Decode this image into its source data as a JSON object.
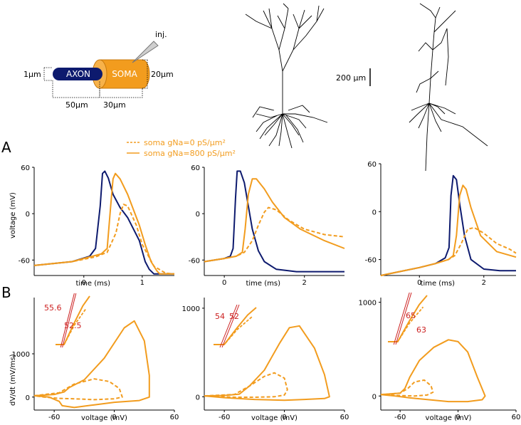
{
  "colors": {
    "navy": "#0d1a6e",
    "orange": "#f29c1e",
    "red": "#cc1f1f",
    "axis": "#000000",
    "neuron": "#000000",
    "soma_fill": "#f29c1e",
    "axon_fill": "#0d1a6e"
  },
  "schematic": {
    "axon_label": "AXON",
    "soma_label": "SOMA",
    "inj_label": "inj.",
    "diam_axon": "1µm",
    "diam_soma": "20µm",
    "len_axon": "50µm",
    "len_soma": "30µm",
    "scalebar": "200 µm"
  },
  "panels": {
    "A": "A",
    "B": "B"
  },
  "legend": {
    "dashed": "soma gNa=0 pS/µm²",
    "solid": "soma gNa=800 pS/µm²"
  },
  "labels": {
    "voltage_mV": "voltage (mV)",
    "time_ms": "time (ms)",
    "dvdt": "dV/dt (mV/ms)",
    "voltage_x": "voltage (mV)"
  },
  "chart_data": [
    {
      "type": "line",
      "panel": "A1",
      "title": "",
      "xlabel": "time (ms)",
      "ylabel": "voltage (mV)",
      "xlim": [
        -0.85,
        1.55
      ],
      "ylim": [
        -80,
        60
      ],
      "xticks": [
        0,
        1
      ],
      "yticks": [
        -60,
        0,
        60
      ],
      "series": [
        {
          "name": "axon",
          "style": "solid-navy",
          "x": [
            -0.85,
            -0.2,
            0.1,
            0.2,
            0.28,
            0.32,
            0.36,
            0.42,
            0.5,
            0.62,
            0.75,
            0.95,
            1.05,
            1.12,
            1.2,
            1.55
          ],
          "y": [
            -67,
            -62,
            -55,
            -45,
            10,
            52,
            55,
            46,
            25,
            8,
            -5,
            -35,
            -62,
            -72,
            -78,
            -78
          ]
        },
        {
          "name": "soma gNa=800",
          "style": "solid-orange",
          "x": [
            -0.85,
            -0.2,
            0.1,
            0.3,
            0.4,
            0.46,
            0.5,
            0.54,
            0.62,
            0.75,
            0.95,
            1.05,
            1.15,
            1.25,
            1.3,
            1.55
          ],
          "y": [
            -67,
            -62,
            -56,
            -52,
            -45,
            10,
            45,
            52,
            45,
            25,
            -15,
            -40,
            -62,
            -74,
            -78,
            -78
          ]
        },
        {
          "name": "soma gNa=0",
          "style": "dashed-orange",
          "x": [
            -0.85,
            -0.2,
            0.2,
            0.4,
            0.55,
            0.62,
            0.68,
            0.75,
            0.9,
            1.0,
            1.2,
            1.4,
            1.55
          ],
          "y": [
            -67,
            -62,
            -56,
            -50,
            -25,
            0,
            12,
            10,
            -15,
            -40,
            -68,
            -77,
            -78
          ]
        }
      ]
    },
    {
      "type": "line",
      "panel": "A2",
      "title": "",
      "xlabel": "time (ms)",
      "ylabel": "",
      "xlim": [
        -0.5,
        3.0
      ],
      "ylim": [
        -80,
        60
      ],
      "xticks": [
        0,
        2
      ],
      "yticks": [
        -60,
        0,
        60
      ],
      "series": [
        {
          "name": "axon",
          "style": "solid-navy",
          "x": [
            -0.5,
            0,
            0.15,
            0.22,
            0.28,
            0.32,
            0.4,
            0.5,
            0.6,
            0.7,
            0.85,
            1.0,
            1.3,
            1.8,
            3.0
          ],
          "y": [
            -62,
            -58,
            -55,
            -45,
            20,
            55,
            55,
            40,
            10,
            -20,
            -48,
            -62,
            -72,
            -75,
            -75
          ]
        },
        {
          "name": "soma gNa=800",
          "style": "solid-orange",
          "x": [
            -0.5,
            0,
            0.3,
            0.45,
            0.52,
            0.6,
            0.7,
            0.8,
            1.0,
            1.2,
            1.5,
            1.9,
            2.5,
            3.0
          ],
          "y": [
            -62,
            -58,
            -55,
            -50,
            -20,
            25,
            45,
            45,
            32,
            15,
            -5,
            -20,
            -35,
            -45
          ]
        },
        {
          "name": "soma gNa=0",
          "style": "dashed-orange",
          "x": [
            -0.5,
            0,
            0.3,
            0.5,
            0.7,
            0.85,
            1.0,
            1.1,
            1.3,
            1.6,
            2.0,
            2.5,
            3.0
          ],
          "y": [
            -62,
            -58,
            -55,
            -50,
            -35,
            -15,
            2,
            8,
            5,
            -8,
            -20,
            -27,
            -30
          ]
        }
      ]
    },
    {
      "type": "line",
      "panel": "A3",
      "title": "",
      "xlabel": "time (ms)",
      "ylabel": "",
      "xlim": [
        -1.2,
        3.0
      ],
      "ylim": [
        -80,
        60
      ],
      "xticks": [
        0,
        2
      ],
      "yticks": [
        -60,
        0,
        60
      ],
      "series": [
        {
          "name": "axon",
          "style": "solid-navy",
          "x": [
            -1.2,
            0,
            0.5,
            0.8,
            0.92,
            0.98,
            1.05,
            1.15,
            1.25,
            1.4,
            1.6,
            2.0,
            2.5,
            3.0
          ],
          "y": [
            -80,
            -70,
            -65,
            -58,
            -45,
            20,
            45,
            40,
            10,
            -30,
            -60,
            -72,
            -74,
            -74
          ]
        },
        {
          "name": "soma gNa=800",
          "style": "solid-orange",
          "x": [
            -1.2,
            0,
            0.5,
            0.9,
            1.05,
            1.15,
            1.25,
            1.35,
            1.45,
            1.6,
            1.9,
            2.4,
            3.0
          ],
          "y": [
            -80,
            -70,
            -65,
            -60,
            -55,
            -30,
            20,
            33,
            28,
            5,
            -30,
            -50,
            -57
          ]
        },
        {
          "name": "soma gNa=0",
          "style": "dashed-orange",
          "x": [
            -1.2,
            0,
            0.5,
            0.9,
            1.1,
            1.3,
            1.5,
            1.7,
            2.0,
            2.4,
            2.8,
            3.0
          ],
          "y": [
            -80,
            -70,
            -65,
            -60,
            -55,
            -40,
            -22,
            -20,
            -27,
            -40,
            -47,
            -52
          ]
        }
      ]
    },
    {
      "type": "line",
      "panel": "B1",
      "xlabel": "voltage (mV)",
      "ylabel": "dV/dt (mV/ms)",
      "xlim": [
        -80,
        60
      ],
      "ylim": [
        -300,
        2300
      ],
      "xticks": [
        -60,
        0,
        60
      ],
      "yticks": [
        0,
        1000
      ],
      "series": [
        {
          "name": "soma gNa=800",
          "style": "solid-orange",
          "x": [
            -80,
            -60,
            -50,
            -45,
            -30,
            -10,
            10,
            20,
            30,
            35,
            35,
            25,
            0,
            -20,
            -40,
            -52,
            -55,
            -65,
            -80
          ],
          "y": [
            30,
            60,
            120,
            220,
            400,
            900,
            1600,
            1760,
            1300,
            500,
            0,
            -80,
            -120,
            -180,
            -240,
            -200,
            -100,
            0,
            30
          ]
        },
        {
          "name": "soma gNa=0",
          "style": "dashed-orange",
          "x": [
            -80,
            -55,
            -40,
            -20,
            -5,
            5,
            8,
            0,
            -20,
            -40,
            -55,
            -70,
            -80
          ],
          "y": [
            30,
            100,
            300,
            420,
            360,
            200,
            0,
            -40,
            -60,
            -40,
            -30,
            0,
            30
          ]
        }
      ],
      "annotations": [
        "55.6",
        "52.5"
      ]
    },
    {
      "type": "line",
      "panel": "B2",
      "xlabel": "voltage (mV)",
      "ylabel": "",
      "xlim": [
        -80,
        60
      ],
      "ylim": [
        -150,
        1120
      ],
      "xticks": [
        -60,
        0,
        60
      ],
      "yticks": [
        0,
        1000
      ],
      "series": [
        {
          "name": "soma gNa=800",
          "style": "solid-orange",
          "x": [
            -80,
            -60,
            -45,
            -35,
            -20,
            -5,
            5,
            15,
            30,
            40,
            45,
            40,
            20,
            0,
            -30,
            -60,
            -80
          ],
          "y": [
            10,
            15,
            30,
            120,
            300,
            600,
            780,
            800,
            550,
            250,
            0,
            -20,
            -30,
            -40,
            -30,
            -10,
            10
          ]
        },
        {
          "name": "soma gNa=0",
          "style": "dashed-orange",
          "x": [
            -80,
            -50,
            -35,
            -20,
            -10,
            0,
            3,
            0,
            -10,
            -30,
            -50,
            -80
          ],
          "y": [
            10,
            25,
            120,
            230,
            270,
            210,
            80,
            20,
            0,
            -5,
            -5,
            10
          ]
        }
      ],
      "annotations": [
        "54",
        "52"
      ]
    },
    {
      "type": "line",
      "panel": "B3",
      "xlabel": "voltage (mV)",
      "ylabel": "",
      "xlim": [
        -80,
        60
      ],
      "ylim": [
        -150,
        1050
      ],
      "xticks": [
        -60,
        0,
        60
      ],
      "yticks": [
        0,
        1000
      ],
      "series": [
        {
          "name": "soma gNa=800",
          "style": "solid-orange",
          "x": [
            -80,
            -60,
            -55,
            -50,
            -40,
            -25,
            -10,
            0,
            10,
            20,
            28,
            25,
            10,
            -10,
            -30,
            -50,
            -65,
            -80
          ],
          "y": [
            15,
            30,
            80,
            200,
            380,
            520,
            600,
            580,
            470,
            200,
            0,
            -40,
            -60,
            -60,
            -40,
            -20,
            0,
            15
          ]
        },
        {
          "name": "soma gNa=0",
          "style": "dashed-orange",
          "x": [
            -80,
            -60,
            -52,
            -45,
            -35,
            -28,
            -26,
            -32,
            -45,
            -60,
            -80
          ],
          "y": [
            15,
            30,
            80,
            150,
            170,
            110,
            40,
            10,
            0,
            5,
            15
          ]
        }
      ],
      "annotations": [
        "65",
        "63"
      ]
    }
  ]
}
